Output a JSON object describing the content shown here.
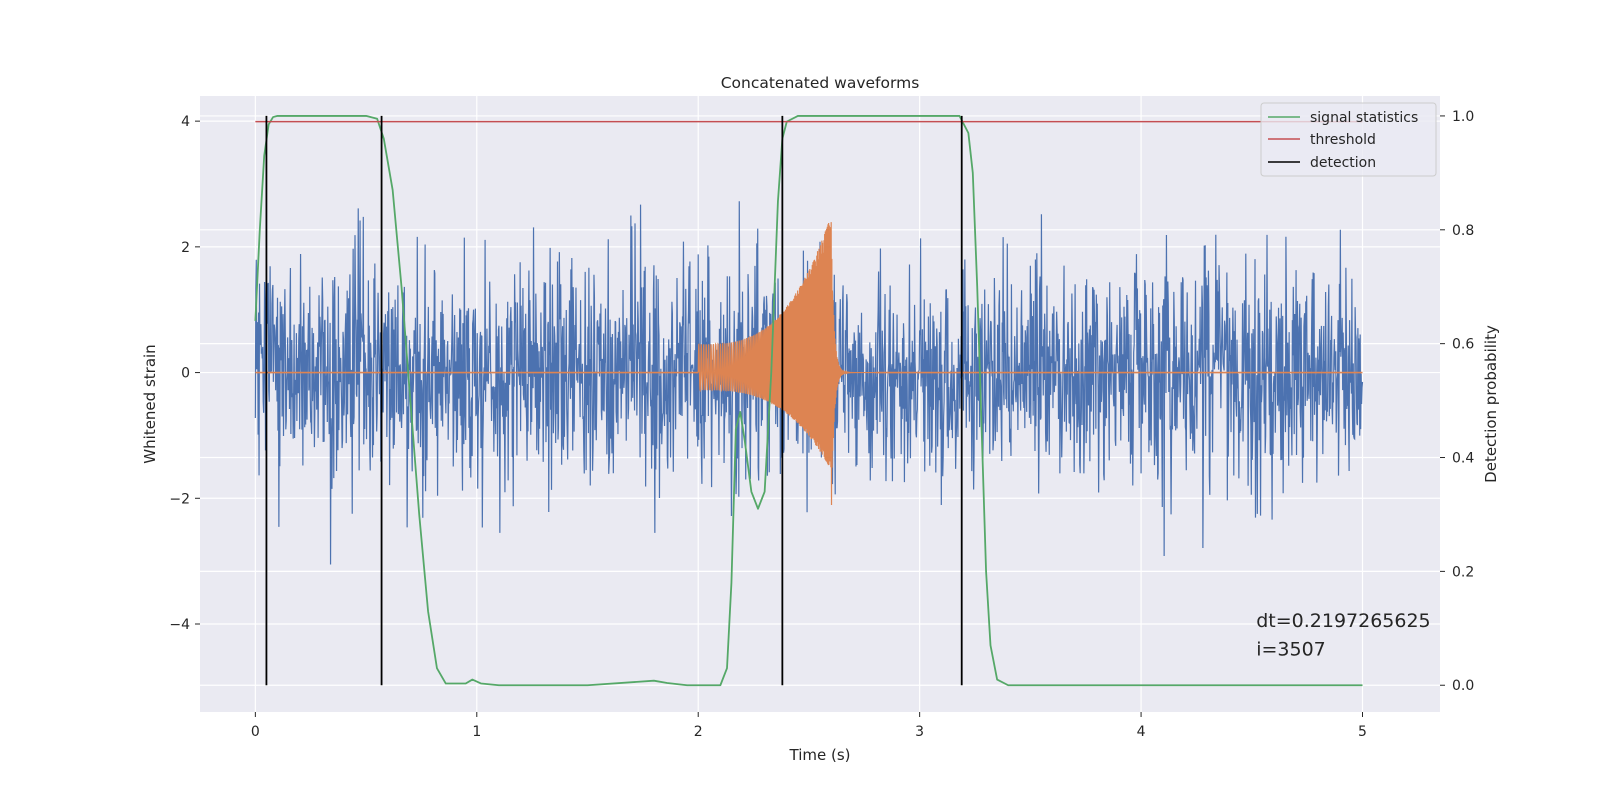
{
  "chart_data": {
    "type": "line",
    "title": "Concatenated waveforms",
    "xlabel": "Time (s)",
    "ylabel": "Whitened strain",
    "ylabel_right": "Detection probability",
    "xlim": [
      -0.25,
      5.35
    ],
    "ylim": [
      -5.4,
      4.4
    ],
    "ylim_right": [
      -0.047,
      1.035
    ],
    "x_ticks": [
      0,
      1,
      2,
      3,
      4,
      5
    ],
    "x_tick_labels": [
      "0",
      "1",
      "2",
      "3",
      "4",
      "5"
    ],
    "y_ticks": [
      -4,
      -2,
      0,
      2,
      4
    ],
    "y_tick_labels": [
      "−4",
      "−2",
      "0",
      "2",
      "4"
    ],
    "y_right_ticks": [
      0.0,
      0.2,
      0.4,
      0.6,
      0.8,
      1.0
    ],
    "y_right_tick_labels": [
      "0.0",
      "0.2",
      "0.4",
      "0.6",
      "0.8",
      "1.0"
    ],
    "grid": true,
    "legend_position": "top-right",
    "series": [
      {
        "name": "",
        "color": "#4c72b0",
        "axis": "left",
        "x_range": [
          0,
          5
        ],
        "typical_amplitude": 1.6,
        "peak_abs": 4.0
      },
      {
        "name": "",
        "color": "#dd8452",
        "axis": "left",
        "x_range": [
          2.0,
          2.8
        ],
        "start_amplitude": 0.45,
        "peak_time": 2.6,
        "peak_value": 2.5,
        "trough_value": -1.55
      },
      {
        "name": "signal statistics",
        "color": "#55a868",
        "axis": "right",
        "x": [
          0,
          0.02,
          0.04,
          0.06,
          0.08,
          0.1,
          0.5,
          0.55,
          0.58,
          0.62,
          0.66,
          0.7,
          0.74,
          0.78,
          0.82,
          0.86,
          0.95,
          0.98,
          1.02,
          1.1,
          1.5,
          1.8,
          1.86,
          1.95,
          2.1,
          2.13,
          2.15,
          2.17,
          2.19,
          2.21,
          2.24,
          2.27,
          2.3,
          2.33,
          2.36,
          2.38,
          2.4,
          2.45,
          3.18,
          3.22,
          3.24,
          3.26,
          3.28,
          3.3,
          3.32,
          3.35,
          3.4,
          5.0
        ],
        "values": [
          0.64,
          0.8,
          0.93,
          0.985,
          0.998,
          1.0,
          1.0,
          0.995,
          0.96,
          0.87,
          0.7,
          0.5,
          0.3,
          0.13,
          0.03,
          0.003,
          0.003,
          0.01,
          0.003,
          0.0,
          0.0,
          0.008,
          0.004,
          0.0,
          0.0,
          0.03,
          0.18,
          0.45,
          0.48,
          0.43,
          0.34,
          0.31,
          0.34,
          0.55,
          0.85,
          0.96,
          0.99,
          1.0,
          1.0,
          0.97,
          0.9,
          0.7,
          0.45,
          0.2,
          0.07,
          0.01,
          0.0,
          0.0
        ]
      },
      {
        "name": "threshold",
        "color": "#c44e52",
        "axis": "right",
        "x": [
          0,
          5
        ],
        "values": [
          0.99,
          0.99
        ]
      },
      {
        "name": "detection",
        "color": "#000000",
        "axis": "right",
        "type": "vlines",
        "x": [
          0.05,
          0.57,
          2.38,
          3.19
        ],
        "y_range": [
          0.0,
          1.0
        ]
      }
    ],
    "annotations": [
      {
        "text": "dt=0.2197265625",
        "x": 4.52,
        "y": -4.05
      },
      {
        "text": " i=3507",
        "x": 4.52,
        "y": -4.5
      }
    ]
  }
}
